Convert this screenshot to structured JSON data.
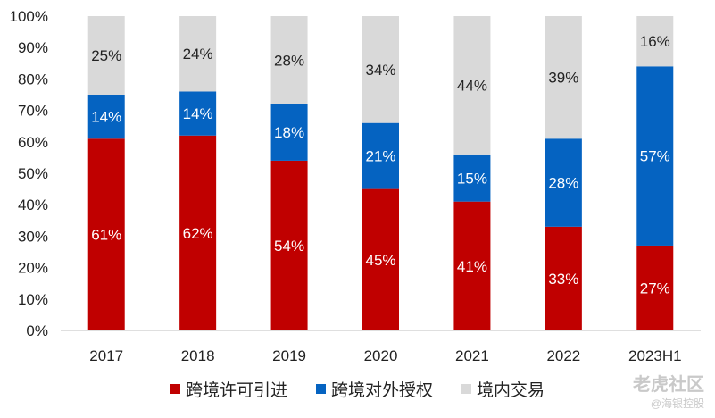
{
  "chart_data": {
    "type": "bar",
    "stacked": true,
    "categories": [
      "2017",
      "2018",
      "2019",
      "2020",
      "2021",
      "2022",
      "2023H1"
    ],
    "series": [
      {
        "name": "跨境许可引进",
        "color": "#C00000",
        "values": [
          61,
          62,
          54,
          45,
          41,
          33,
          27
        ],
        "labels": [
          "61%",
          "62%",
          "54%",
          "45%",
          "41%",
          "33%",
          "27%"
        ]
      },
      {
        "name": "跨境对外授权",
        "color": "#0563C1",
        "values": [
          14,
          14,
          18,
          21,
          15,
          28,
          57
        ],
        "labels": [
          "14%",
          "14%",
          "18%",
          "21%",
          "15%",
          "28%",
          "57%"
        ]
      },
      {
        "name": "境内交易",
        "color": "#D9D9D9",
        "values": [
          25,
          24,
          28,
          34,
          44,
          39,
          16
        ],
        "labels": [
          "25%",
          "24%",
          "28%",
          "34%",
          "44%",
          "39%",
          "16%"
        ]
      }
    ],
    "y_ticks": [
      "0%",
      "10%",
      "20%",
      "30%",
      "40%",
      "50%",
      "60%",
      "70%",
      "80%",
      "90%",
      "100%"
    ],
    "ylim": [
      0,
      100
    ],
    "grid": false,
    "legend_position": "bottom"
  },
  "watermark": {
    "main": "老虎社区",
    "sub": "@海银控股"
  }
}
